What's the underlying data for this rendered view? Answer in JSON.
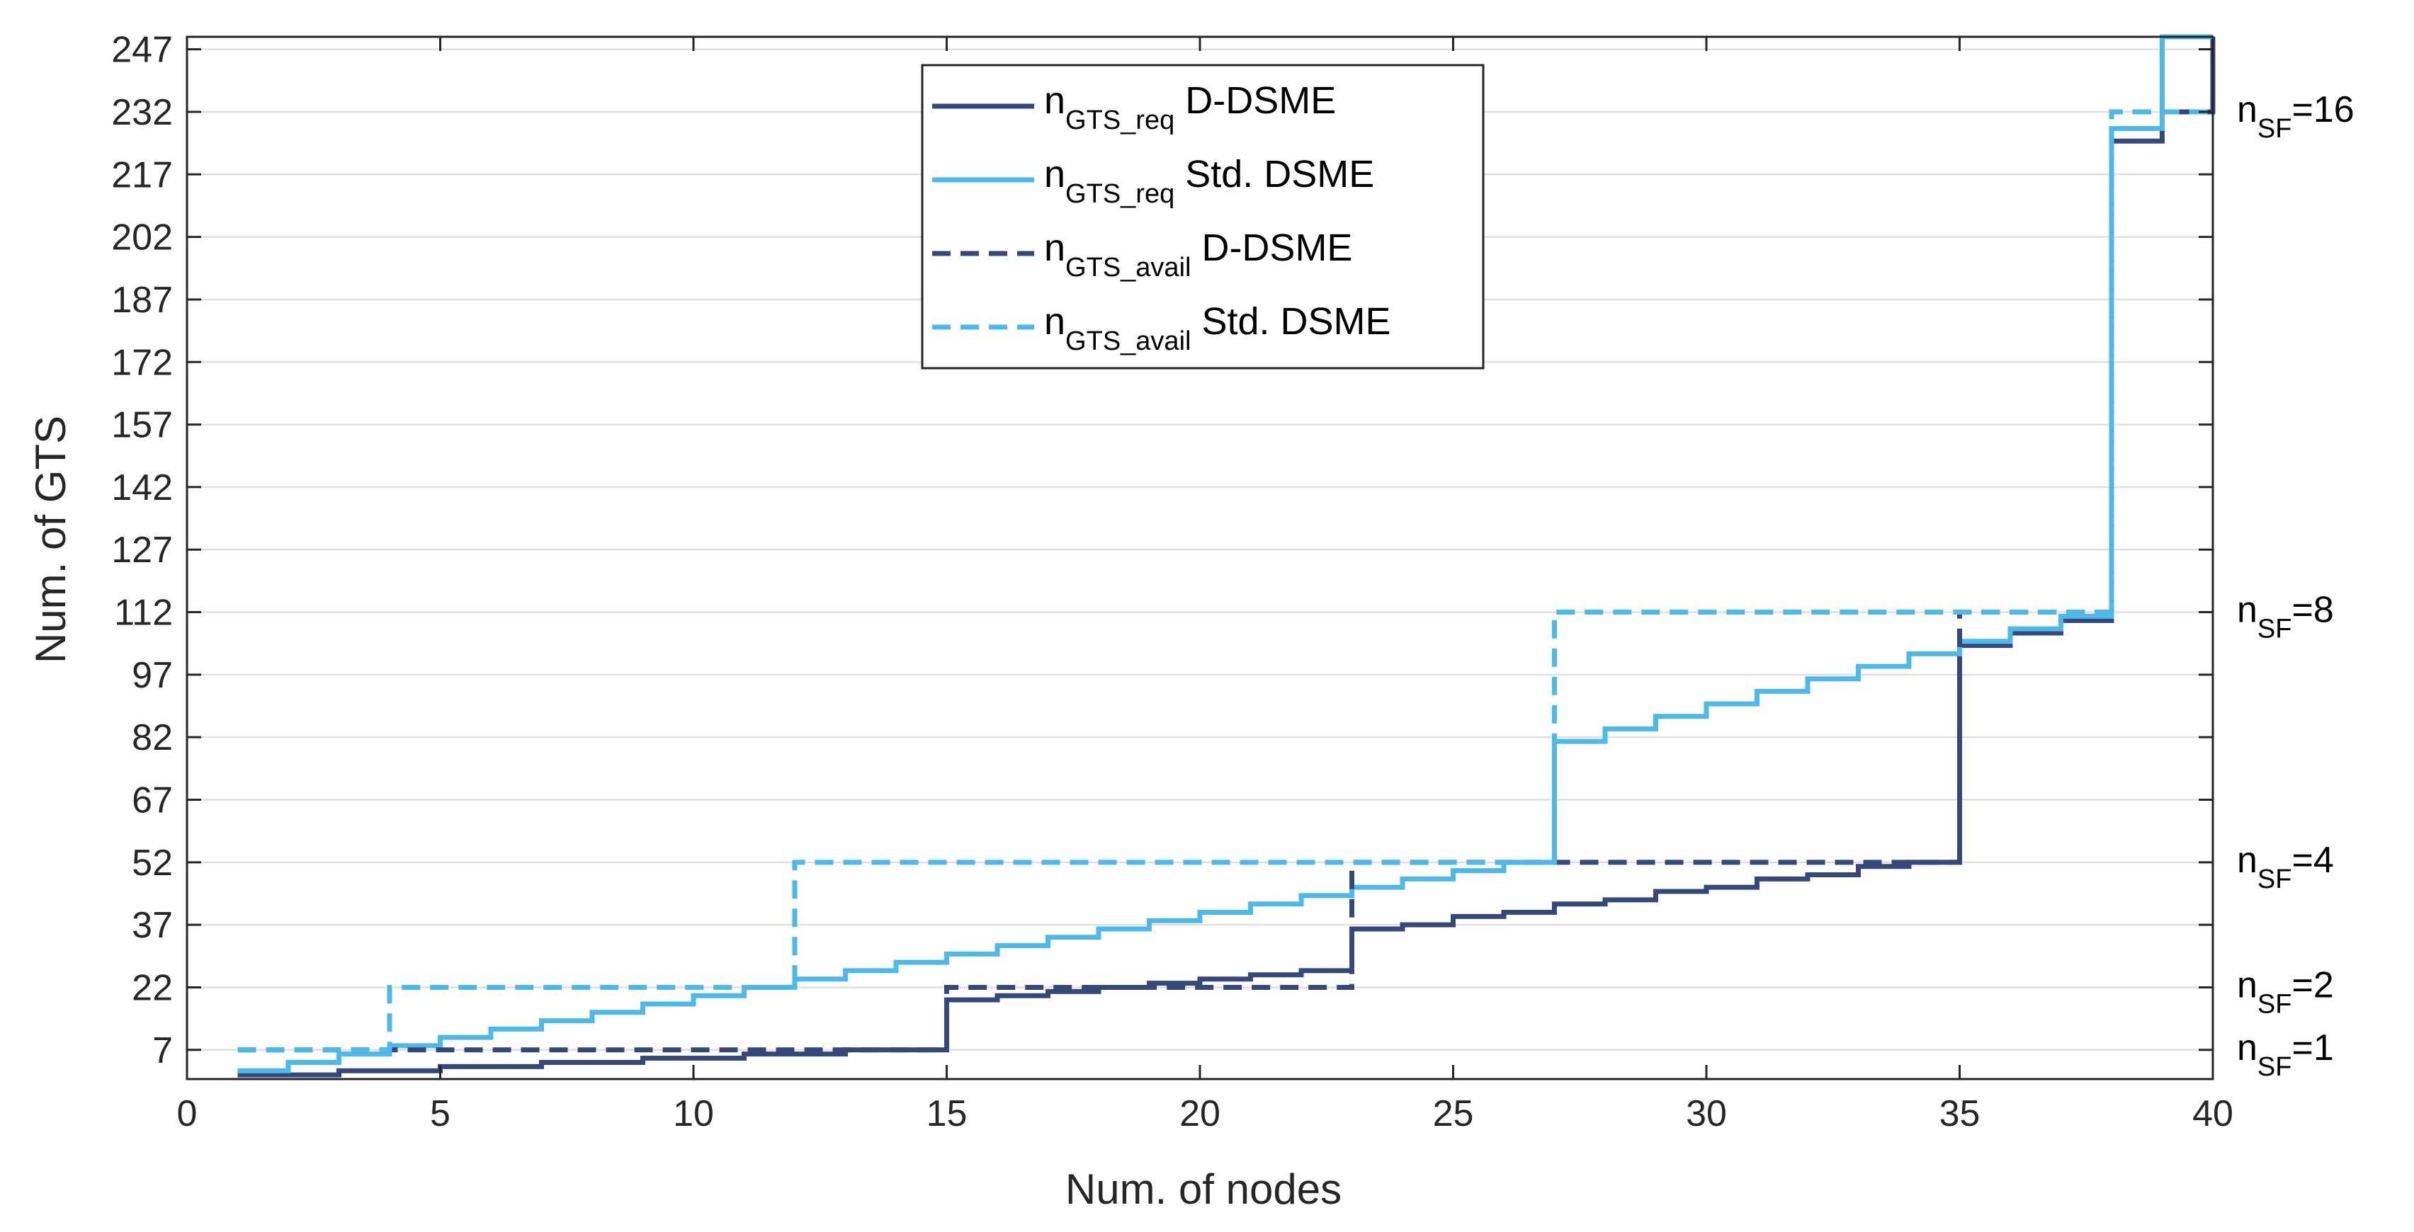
{
  "chart_data": {
    "type": "line",
    "title": "",
    "xlabel": "Num. of nodes",
    "ylabel": "Num. of GTS",
    "xlim": [
      0,
      40
    ],
    "ylim": [
      0,
      250
    ],
    "xticks": [
      0,
      5,
      10,
      15,
      20,
      25,
      30,
      35,
      40
    ],
    "yticks": [
      7,
      22,
      37,
      52,
      67,
      82,
      97,
      112,
      127,
      142,
      157,
      172,
      187,
      202,
      217,
      232,
      247
    ],
    "grid": true,
    "legend_position": "top-center",
    "series": [
      {
        "name": "n_GTS_req D-DSME",
        "legend_base": "n",
        "legend_sub": "GTS_req",
        "legend_suffix": " D-DSME",
        "color": "#34497a",
        "style": "solid",
        "step": "post",
        "x": [
          1,
          2,
          3,
          4,
          5,
          6,
          7,
          8,
          9,
          10,
          11,
          12,
          13,
          14,
          15,
          16,
          17,
          18,
          19,
          20,
          21,
          22,
          23,
          24,
          25,
          26,
          27,
          28,
          29,
          30,
          31,
          32,
          33,
          34,
          35,
          36,
          37,
          38,
          39,
          40
        ],
        "values": [
          1,
          1,
          2,
          2,
          3,
          3,
          4,
          4,
          5,
          5,
          6,
          6,
          7,
          7,
          19,
          20,
          21,
          22,
          23,
          24,
          25,
          26,
          36,
          37,
          39,
          40,
          42,
          43,
          45,
          46,
          48,
          49,
          51,
          52,
          104,
          107,
          110,
          225,
          232,
          250
        ]
      },
      {
        "name": "n_GTS_req Std. DSME",
        "legend_base": "n",
        "legend_sub": "GTS_req",
        "legend_suffix": " Std. DSME",
        "color": "#4db9e8",
        "style": "solid",
        "step": "post",
        "x": [
          1,
          2,
          3,
          4,
          5,
          6,
          7,
          8,
          9,
          10,
          11,
          12,
          13,
          14,
          15,
          16,
          17,
          18,
          19,
          20,
          21,
          22,
          23,
          24,
          25,
          26,
          27,
          28,
          29,
          30,
          31,
          32,
          33,
          34,
          35,
          36,
          37,
          38,
          39,
          40
        ],
        "values": [
          2,
          4,
          6,
          8,
          10,
          12,
          14,
          16,
          18,
          20,
          22,
          24,
          26,
          28,
          30,
          32,
          34,
          36,
          38,
          40,
          42,
          44,
          46,
          48,
          50,
          52,
          81,
          84,
          87,
          90,
          93,
          96,
          99,
          102,
          105,
          108,
          111,
          228,
          250,
          250
        ]
      },
      {
        "name": "n_GTS_avail D-DSME",
        "legend_base": "n",
        "legend_sub": "GTS_avail",
        "legend_suffix": " D-DSME",
        "color": "#34497a",
        "style": "dashed",
        "step": "post",
        "x": [
          1,
          15,
          23,
          35,
          38,
          40
        ],
        "values": [
          7,
          22,
          52,
          112,
          232,
          232
        ]
      },
      {
        "name": "n_GTS_avail Std. DSME",
        "legend_base": "n",
        "legend_sub": "GTS_avail",
        "legend_suffix": " Std. DSME",
        "color": "#4db9e8",
        "style": "dashed",
        "step": "post",
        "x": [
          1,
          4,
          12,
          27,
          38,
          40
        ],
        "values": [
          7,
          22,
          52,
          112,
          232,
          232
        ]
      }
    ],
    "annotations": [
      {
        "base": "n",
        "sub": "SF",
        "suffix": "=16",
        "y": 232
      },
      {
        "base": "n",
        "sub": "SF",
        "suffix": "=8",
        "y": 112
      },
      {
        "base": "n",
        "sub": "SF",
        "suffix": "=4",
        "y": 52
      },
      {
        "base": "n",
        "sub": "SF",
        "suffix": "=2",
        "y": 22
      },
      {
        "base": "n",
        "sub": "SF",
        "suffix": "=1",
        "y": 7
      }
    ]
  }
}
